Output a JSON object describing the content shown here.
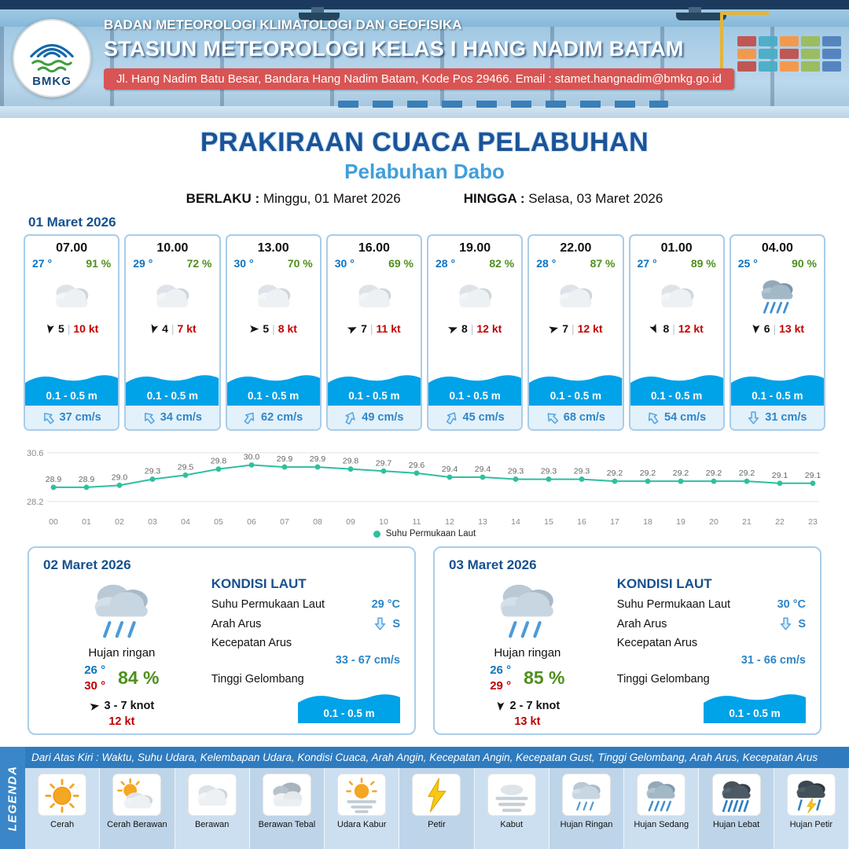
{
  "header": {
    "line1": "BADAN METEOROLOGI KLIMATOLOGI DAN GEOFISIKA",
    "line2": "STASIUN METEOROLOGI KELAS I HANG NADIM BATAM",
    "line3": "Jl. Hang Nadim Batu Besar, Bandara Hang Nadim Batam, Kode Pos 29466. Email : stamet.hangnadim@bmkg.go.id",
    "logo_text": "BMKG"
  },
  "title": {
    "main": "PRAKIRAAN CUACA PELABUHAN",
    "sub": "Pelabuhan Dabo",
    "berlaku_label": "BERLAKU :",
    "berlaku_value": "Minggu, 01 Maret 2026",
    "hingga_label": "HINGGA :",
    "hingga_value": "Selasa, 03 Maret 2026"
  },
  "glyphs": {
    "wind": "wind-barb",
    "current": "arrow-out",
    "sep": "|"
  },
  "day1": {
    "date": "01 Maret 2026",
    "cards": [
      {
        "time": "07.00",
        "temp": "27 °",
        "rh": "91 %",
        "icon": "berawan",
        "wind_deg": 190,
        "wind": "5",
        "gust": "10 kt",
        "wave": "0.1 - 0.5 m",
        "current": "37 cm/s",
        "current_deg": -40
      },
      {
        "time": "10.00",
        "temp": "29 °",
        "rh": "72 %",
        "icon": "berawan",
        "wind_deg": 195,
        "wind": "4",
        "gust": "7 kt",
        "wave": "0.1 - 0.5 m",
        "current": "34 cm/s",
        "current_deg": -40
      },
      {
        "time": "13.00",
        "temp": "30 °",
        "rh": "70 %",
        "icon": "berawan",
        "wind_deg": 90,
        "wind": "5",
        "gust": "8 kt",
        "wave": "0.1 - 0.5 m",
        "current": "62 cm/s",
        "current_deg": 35
      },
      {
        "time": "16.00",
        "temp": "30 °",
        "rh": "69 %",
        "icon": "berawan",
        "wind_deg": 65,
        "wind": "7",
        "gust": "11 kt",
        "wave": "0.1 - 0.5 m",
        "current": "49 cm/s",
        "current_deg": 25
      },
      {
        "time": "19.00",
        "temp": "28 °",
        "rh": "82 %",
        "icon": "berawan",
        "wind_deg": 70,
        "wind": "8",
        "gust": "12 kt",
        "wave": "0.1 - 0.5 m",
        "current": "45 cm/s",
        "current_deg": 30
      },
      {
        "time": "22.00",
        "temp": "28 °",
        "rh": "87 %",
        "icon": "berawan",
        "wind_deg": 75,
        "wind": "7",
        "gust": "12 kt",
        "wave": "0.1 - 0.5 m",
        "current": "68 cm/s",
        "current_deg": -45
      },
      {
        "time": "01.00",
        "temp": "27 °",
        "rh": "89 %",
        "icon": "berawan",
        "wind_deg": 155,
        "wind": "8",
        "gust": "12 kt",
        "wave": "0.1 - 0.5 m",
        "current": "54 cm/s",
        "current_deg": -35
      },
      {
        "time": "04.00",
        "temp": "25 °",
        "rh": "90 %",
        "icon": "hujan-sedang",
        "wind_deg": 185,
        "wind": "6",
        "gust": "13 kt",
        "wave": "0.1 - 0.5 m",
        "current": "31 cm/s",
        "current_deg": 180
      }
    ]
  },
  "chart_data": {
    "type": "line",
    "x": [
      "00",
      "01",
      "02",
      "03",
      "04",
      "05",
      "06",
      "07",
      "08",
      "09",
      "10",
      "11",
      "12",
      "13",
      "14",
      "15",
      "16",
      "17",
      "18",
      "19",
      "20",
      "21",
      "22",
      "23"
    ],
    "values": [
      28.9,
      28.9,
      29.0,
      29.3,
      29.5,
      29.8,
      30.0,
      29.9,
      29.9,
      29.8,
      29.7,
      29.6,
      29.4,
      29.4,
      29.3,
      29.3,
      29.3,
      29.2,
      29.2,
      29.2,
      29.2,
      29.2,
      29.1,
      29.1
    ],
    "ylim": [
      28.2,
      30.6
    ],
    "legend": "Suhu Permukaan Laut",
    "line_color": "#2fbfa0",
    "title": "",
    "xlabel": "",
    "ylabel": ""
  },
  "days": [
    {
      "date": "02 Maret 2026",
      "icon": "hujan-ringan",
      "cond": "Hujan ringan",
      "temp_min": "26 °",
      "temp_max": "30 °",
      "rh": "84 %",
      "wind_deg": 80,
      "wind": "3 - 7 knot",
      "gust": "12 kt",
      "sea": {
        "title": "KONDISI LAUT",
        "sst_label": "Suhu Permukaan Laut",
        "sst": "29 °C",
        "dir_label": "Arah Arus",
        "dir": "S",
        "dir_deg": 180,
        "speed_label": "Kecepatan Arus",
        "speed": "33 - 67 cm/s",
        "wave_label": "Tinggi Gelombang",
        "wave": "0.1 - 0.5 m"
      }
    },
    {
      "date": "03 Maret 2026",
      "icon": "hujan-ringan",
      "cond": "Hujan ringan",
      "temp_min": "26 °",
      "temp_max": "29 °",
      "rh": "85 %",
      "wind_deg": 185,
      "wind": "2 - 7 knot",
      "gust": "13 kt",
      "sea": {
        "title": "KONDISI LAUT",
        "sst_label": "Suhu Permukaan Laut",
        "sst": "30 °C",
        "dir_label": "Arah Arus",
        "dir": "S",
        "dir_deg": 180,
        "speed_label": "Kecepatan Arus",
        "speed": "31 - 66 cm/s",
        "wave_label": "Tinggi Gelombang",
        "wave": "0.1 - 0.5 m"
      }
    }
  ],
  "legend": {
    "title": "LEGENDA",
    "description": "Dari Atas Kiri : Waktu, Suhu Udara, Kelembapan Udara, Kondisi Cuaca, Arah Angin, Kecepatan Angin, Kecepatan Gust, Tinggi Gelombang, Arah Arus, Kecepatan Arus",
    "items": [
      {
        "label": "Cerah",
        "icon": "cerah"
      },
      {
        "label": "Cerah Berawan",
        "icon": "cerah-berawan"
      },
      {
        "label": "Berawan",
        "icon": "berawan"
      },
      {
        "label": "Berawan Tebal",
        "icon": "berawan-tebal"
      },
      {
        "label": "Udara Kabur",
        "icon": "udara-kabur"
      },
      {
        "label": "Petir",
        "icon": "petir"
      },
      {
        "label": "Kabut",
        "icon": "kabut"
      },
      {
        "label": "Hujan Ringan",
        "icon": "hujan-ringan"
      },
      {
        "label": "Hujan Sedang",
        "icon": "hujan-sedang"
      },
      {
        "label": "Hujan Lebat",
        "icon": "hujan-lebat"
      },
      {
        "label": "Hujan Petir",
        "icon": "hujan-petir"
      }
    ]
  },
  "colors": {
    "accent_dark_blue": "#1b5398",
    "accent_light_blue": "#3f9fdb",
    "banner_red": "#d95454",
    "wave_blue": "#00a2e8",
    "humidity_green": "#4f8f1d",
    "gust_red": "#c00000",
    "current_blue": "#2e86c8",
    "chart_teal": "#2fbfa0",
    "legend_bar_blue": "#2e7bbf"
  }
}
